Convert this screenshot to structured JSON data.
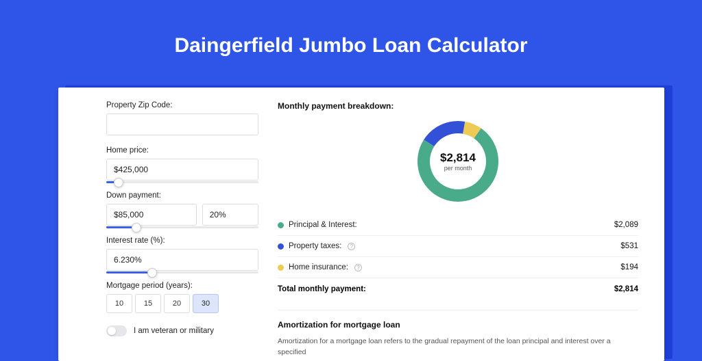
{
  "header": {
    "title": "Daingerfield Jumbo Loan Calculator"
  },
  "form": {
    "zip": {
      "label": "Property Zip Code:",
      "value": ""
    },
    "home_price": {
      "label": "Home price:",
      "value": "$425,000",
      "slider_pct": 8
    },
    "down_payment": {
      "label": "Down payment:",
      "value": "$85,000",
      "pct": "20%",
      "slider_pct": 20
    },
    "interest_rate": {
      "label": "Interest rate (%):",
      "value": "6.230%",
      "slider_pct": 30
    },
    "mortgage_period": {
      "label": "Mortgage period (years):",
      "options": [
        "10",
        "15",
        "20",
        "30"
      ],
      "selected": "30"
    },
    "veteran": {
      "label": "I am veteran or military",
      "on": false
    }
  },
  "breakdown": {
    "title": "Monthly payment breakdown:",
    "total_amount": "$2,814",
    "total_sub": "per month",
    "donut": {
      "segments": [
        {
          "label": "Principal & Interest",
          "value": 2089,
          "display": "$2,089",
          "color": "#4aab8a",
          "has_info": false
        },
        {
          "label": "Property taxes",
          "value": 531,
          "display": "$531",
          "color": "#3351d6",
          "has_info": true
        },
        {
          "label": "Home insurance",
          "value": 194,
          "display": "$194",
          "color": "#eecb55",
          "has_info": true
        }
      ],
      "stroke_width": 18,
      "radius": 50
    },
    "total_row": {
      "label": "Total monthly payment:",
      "value": "$2,814"
    }
  },
  "amortization": {
    "title": "Amortization for mortgage loan",
    "text": "Amortization for a mortgage loan refers to the gradual repayment of the loan principal and interest over a specified"
  },
  "colors": {
    "bg": "#2f55e8",
    "slider_fill": "#3b5fe8",
    "period_active_bg": "#dde5fc"
  }
}
